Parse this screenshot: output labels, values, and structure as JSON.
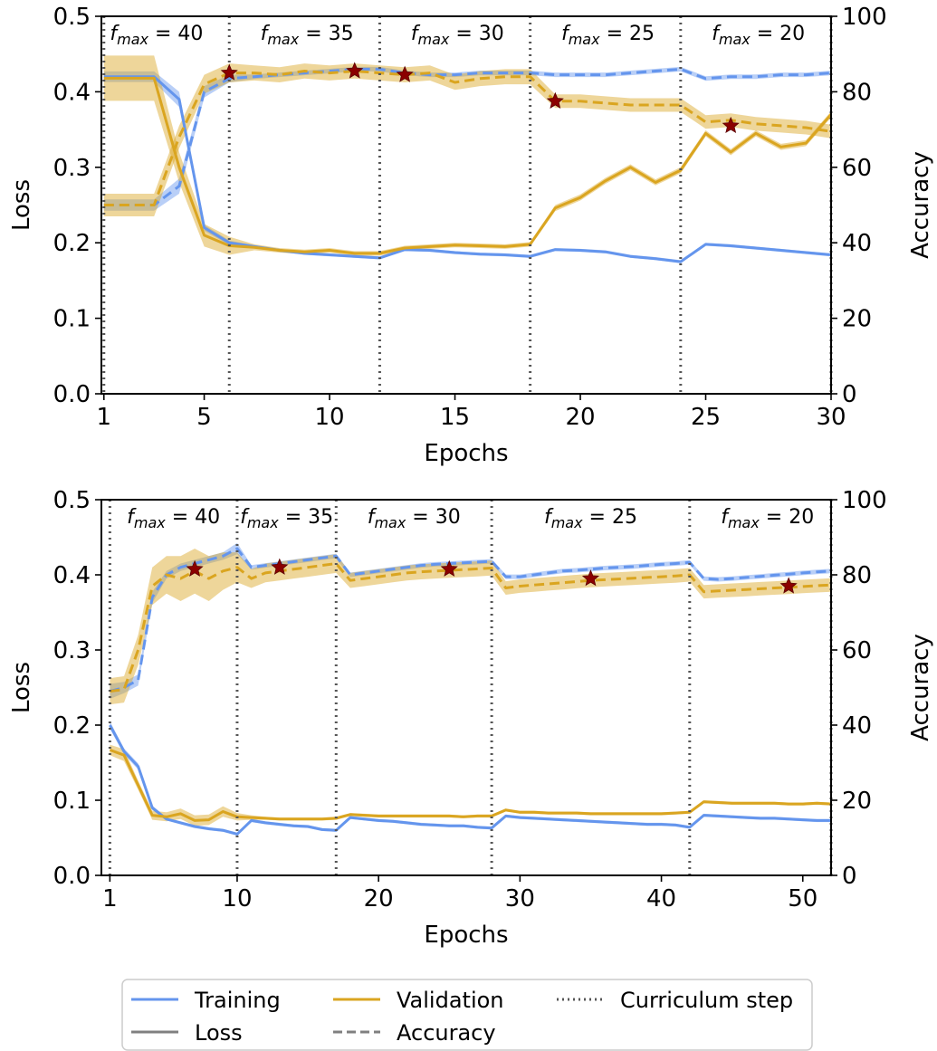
{
  "chart_data": [
    {
      "type": "line",
      "xlabel": "Epochs",
      "ylabel_left": "Loss",
      "ylabel_right": "Accuracy",
      "xlim": [
        0.9,
        30
      ],
      "ylim_left": [
        0,
        0.5
      ],
      "ylim_right": [
        0,
        100
      ],
      "xticks": [
        1,
        5,
        10,
        15,
        20,
        25,
        30
      ],
      "yticks_left": [
        "0.0",
        "0.1",
        "0.2",
        "0.3",
        "0.4",
        "0.5"
      ],
      "yticks_right": [
        "0",
        "20",
        "40",
        "60",
        "80",
        "100"
      ],
      "curriculum_steps": [
        1,
        6,
        12,
        18,
        24,
        30
      ],
      "regions": [
        {
          "x": 3.1,
          "text": "= 40"
        },
        {
          "x": 9.1,
          "text": "= 35"
        },
        {
          "x": 15.1,
          "text": "= 30"
        },
        {
          "x": 21.1,
          "text": "= 25"
        },
        {
          "x": 27.1,
          "text": "= 20"
        }
      ],
      "epochs": [
        1,
        2,
        3,
        4,
        5,
        6,
        7,
        8,
        9,
        10,
        11,
        12,
        13,
        14,
        15,
        16,
        17,
        18,
        19,
        20,
        21,
        22,
        23,
        24,
        25,
        26,
        27,
        28,
        29,
        30
      ],
      "series": [
        {
          "name": "Training",
          "metric": "Loss",
          "values": [
            0.42,
            0.42,
            0.42,
            0.39,
            0.22,
            0.2,
            0.195,
            0.19,
            0.186,
            0.184,
            0.182,
            0.18,
            0.191,
            0.19,
            0.187,
            0.185,
            0.184,
            0.182,
            0.191,
            0.19,
            0.188,
            0.182,
            0.179,
            0.175,
            0.198,
            0.196,
            0.193,
            0.19,
            0.187,
            0.184
          ],
          "band": [
            0.007,
            0.007,
            0.007,
            0.01,
            0.004,
            0.003,
            0.002,
            0.002,
            0.002,
            0.002,
            0.002,
            0.002,
            0.002,
            0.002,
            0.002,
            0.002,
            0.002,
            0.002,
            0.002,
            0.002,
            0.002,
            0.002,
            0.002,
            0.002,
            0.002,
            0.002,
            0.002,
            0.002,
            0.002,
            0.002
          ]
        },
        {
          "name": "Training",
          "metric": "Accuracy",
          "values": [
            50,
            50,
            50,
            55,
            80,
            83.5,
            84,
            84.5,
            85,
            85.5,
            86,
            86,
            85,
            84.5,
            84.5,
            85,
            85,
            85,
            84.5,
            84.5,
            84.5,
            85,
            85.5,
            86,
            83.5,
            84,
            84,
            84.5,
            84.5,
            85
          ],
          "band": [
            1.5,
            1.5,
            1.5,
            2,
            1.5,
            1,
            0.6,
            0.6,
            0.6,
            0.6,
            0.6,
            0.6,
            0.6,
            0.6,
            0.6,
            0.6,
            0.6,
            0.6,
            0.6,
            0.6,
            0.6,
            0.6,
            0.6,
            0.6,
            0.6,
            0.6,
            0.6,
            0.6,
            0.6,
            0.6
          ]
        },
        {
          "name": "Validation",
          "metric": "Loss",
          "values": [
            0.418,
            0.418,
            0.418,
            0.3,
            0.21,
            0.196,
            0.194,
            0.19,
            0.188,
            0.19,
            0.186,
            0.186,
            0.193,
            0.195,
            0.197,
            0.196,
            0.195,
            0.198,
            0.246,
            0.26,
            0.282,
            0.3,
            0.28,
            0.296,
            0.345,
            0.32,
            0.345,
            0.327,
            0.332,
            0.37
          ],
          "band": [
            0.03,
            0.03,
            0.03,
            0.02,
            0.015,
            0.012,
            0.004,
            0.003,
            0.003,
            0.003,
            0.003,
            0.003,
            0.003,
            0.003,
            0.003,
            0.003,
            0.003,
            0.003,
            0.004,
            0.004,
            0.004,
            0.004,
            0.004,
            0.004,
            0.004,
            0.004,
            0.004,
            0.004,
            0.004,
            0.004
          ]
        },
        {
          "name": "Validation",
          "metric": "Accuracy",
          "values": [
            50,
            50,
            50,
            68,
            82,
            85,
            85,
            84.5,
            85.5,
            85,
            85.5,
            85,
            84.5,
            85,
            82.5,
            83.5,
            84,
            84,
            77.5,
            77.5,
            77,
            76.5,
            76.5,
            76.5,
            72,
            72.5,
            71.5,
            71,
            70.5,
            69.5
          ],
          "band": [
            3,
            3,
            3,
            3,
            2.5,
            2.5,
            2,
            2,
            2,
            2,
            2,
            2,
            2,
            2,
            2,
            2,
            2,
            2,
            1.8,
            1.8,
            1.8,
            1.8,
            1.8,
            1.8,
            1.8,
            1.8,
            1.8,
            1.8,
            1.8,
            1.8
          ]
        }
      ],
      "best_markers": [
        {
          "x": 6,
          "y": 85
        },
        {
          "x": 11,
          "y": 85.5
        },
        {
          "x": 13,
          "y": 84.5
        },
        {
          "x": 19,
          "y": 77.5
        },
        {
          "x": 26,
          "y": 71
        }
      ]
    },
    {
      "type": "line",
      "xlabel": "Epochs",
      "ylabel_left": "Loss",
      "ylabel_right": "Accuracy",
      "xlim": [
        0.4,
        52
      ],
      "ylim_left": [
        0,
        0.5
      ],
      "ylim_right": [
        0,
        100
      ],
      "xticks": [
        1,
        10,
        20,
        30,
        40,
        50
      ],
      "yticks_left": [
        "0.0",
        "0.1",
        "0.2",
        "0.3",
        "0.4",
        "0.5"
      ],
      "yticks_right": [
        "0",
        "20",
        "40",
        "60",
        "80",
        "100"
      ],
      "curriculum_steps": [
        1,
        10,
        17,
        28,
        42,
        52
      ],
      "regions": [
        {
          "x": 5.5,
          "text": "= 40"
        },
        {
          "x": 13.5,
          "text": "= 35"
        },
        {
          "x": 22.5,
          "text": "= 30"
        },
        {
          "x": 35,
          "text": "= 25"
        },
        {
          "x": 47.5,
          "text": "= 20"
        }
      ],
      "epochs": [
        1,
        2,
        3,
        4,
        5,
        6,
        7,
        8,
        9,
        10,
        11,
        12,
        13,
        14,
        15,
        16,
        17,
        18,
        19,
        20,
        21,
        22,
        23,
        24,
        25,
        26,
        27,
        28,
        29,
        30,
        31,
        32,
        33,
        34,
        35,
        36,
        37,
        38,
        39,
        40,
        41,
        42,
        43,
        44,
        45,
        46,
        47,
        48,
        49,
        50,
        51,
        52
      ],
      "series": [
        {
          "name": "Training",
          "metric": "Loss",
          "values": [
            0.2,
            0.165,
            0.145,
            0.09,
            0.075,
            0.07,
            0.065,
            0.062,
            0.06,
            0.055,
            0.073,
            0.07,
            0.068,
            0.066,
            0.065,
            0.061,
            0.06,
            0.077,
            0.075,
            0.073,
            0.072,
            0.07,
            0.068,
            0.067,
            0.066,
            0.066,
            0.064,
            0.063,
            0.079,
            0.077,
            0.076,
            0.075,
            0.074,
            0.073,
            0.072,
            0.071,
            0.07,
            0.069,
            0.068,
            0.068,
            0.067,
            0.064,
            0.08,
            0.079,
            0.078,
            0.077,
            0.076,
            0.076,
            0.075,
            0.074,
            0.073,
            0.073
          ],
          "band": [
            0.005,
            0.004,
            0.004,
            0.003,
            0.002,
            0.002,
            0.002,
            0.002,
            0.002,
            0.002,
            0.002,
            0.002,
            0.002,
            0.002,
            0.002,
            0.002,
            0.002,
            0.002,
            0.002,
            0.002,
            0.002,
            0.002,
            0.002,
            0.002,
            0.002,
            0.002,
            0.002,
            0.002,
            0.002,
            0.002,
            0.002,
            0.002,
            0.002,
            0.002,
            0.002,
            0.002,
            0.002,
            0.002,
            0.002,
            0.002,
            0.002,
            0.002,
            0.002,
            0.002,
            0.002,
            0.002,
            0.002,
            0.002,
            0.002,
            0.002,
            0.002,
            0.002
          ]
        },
        {
          "name": "Training",
          "metric": "Accuracy",
          "values": [
            49,
            50,
            52,
            74,
            80,
            82,
            83,
            84,
            85,
            87,
            82,
            82.5,
            83,
            83.5,
            84,
            84.5,
            85,
            80,
            80.5,
            81,
            81.5,
            82,
            82.5,
            82.8,
            83,
            83.2,
            83.4,
            83.6,
            79.5,
            79.5,
            80,
            80.5,
            81,
            81.2,
            81.5,
            81.8,
            82,
            82.2,
            82.5,
            82.8,
            83,
            83.3,
            79,
            78.8,
            79,
            79.3,
            79.6,
            79.9,
            80.2,
            80.5,
            80.8,
            81
          ],
          "band": [
            2,
            1.5,
            1.5,
            1.5,
            1,
            1,
            1,
            1,
            1,
            1.5,
            0.6,
            0.6,
            0.6,
            0.6,
            0.6,
            0.6,
            0.6,
            0.6,
            0.6,
            0.6,
            0.6,
            0.6,
            0.6,
            0.6,
            0.6,
            0.6,
            0.6,
            0.6,
            0.6,
            0.6,
            0.6,
            0.6,
            0.6,
            0.6,
            0.6,
            0.6,
            0.6,
            0.6,
            0.6,
            0.6,
            0.6,
            0.6,
            0.6,
            0.6,
            0.6,
            0.6,
            0.6,
            0.6,
            0.6,
            0.6,
            0.6,
            0.6
          ]
        },
        {
          "name": "Validation",
          "metric": "Loss",
          "values": [
            0.167,
            0.16,
            0.12,
            0.08,
            0.078,
            0.082,
            0.073,
            0.074,
            0.085,
            0.078,
            0.077,
            0.076,
            0.075,
            0.075,
            0.075,
            0.075,
            0.076,
            0.081,
            0.08,
            0.079,
            0.079,
            0.079,
            0.079,
            0.079,
            0.079,
            0.078,
            0.079,
            0.079,
            0.087,
            0.084,
            0.084,
            0.083,
            0.083,
            0.083,
            0.082,
            0.082,
            0.082,
            0.082,
            0.082,
            0.082,
            0.083,
            0.084,
            0.098,
            0.097,
            0.096,
            0.096,
            0.096,
            0.096,
            0.095,
            0.095,
            0.096,
            0.095
          ],
          "band": [
            0.007,
            0.008,
            0.006,
            0.006,
            0.006,
            0.007,
            0.007,
            0.007,
            0.007,
            0.005,
            0.003,
            0.002,
            0.002,
            0.002,
            0.002,
            0.002,
            0.002,
            0.002,
            0.002,
            0.002,
            0.002,
            0.002,
            0.002,
            0.002,
            0.002,
            0.002,
            0.002,
            0.002,
            0.002,
            0.002,
            0.002,
            0.002,
            0.002,
            0.002,
            0.002,
            0.002,
            0.002,
            0.002,
            0.002,
            0.002,
            0.002,
            0.002,
            0.002,
            0.002,
            0.002,
            0.002,
            0.002,
            0.002,
            0.002,
            0.002,
            0.002,
            0.002
          ]
        },
        {
          "name": "Validation",
          "metric": "Accuracy",
          "values": [
            49,
            49.5,
            60,
            77,
            80,
            79,
            81,
            79,
            81,
            82,
            79,
            80.5,
            81,
            81.5,
            82,
            82.5,
            83,
            78.5,
            79,
            79.5,
            80,
            80.5,
            80.8,
            81,
            81.2,
            81.4,
            81.6,
            81.8,
            76.5,
            77,
            77.3,
            77.6,
            77.9,
            78.2,
            78.5,
            78.7,
            78.9,
            79.1,
            79.3,
            79.5,
            79.7,
            80,
            75.5,
            75.7,
            75.9,
            76.1,
            76.3,
            76.5,
            76.7,
            76.9,
            77.1,
            77.3
          ],
          "band": [
            3.5,
            3.5,
            4,
            5,
            5,
            6,
            6,
            6,
            5,
            4,
            2.5,
            2.5,
            2.5,
            2.5,
            2.5,
            2.5,
            2.5,
            2,
            2,
            2,
            2,
            2,
            2,
            2,
            2,
            2,
            2,
            2,
            1.8,
            1.8,
            1.8,
            1.8,
            1.8,
            1.8,
            1.8,
            1.8,
            1.8,
            1.8,
            1.8,
            1.8,
            1.8,
            1.8,
            1.8,
            1.8,
            1.8,
            1.8,
            1.8,
            1.8,
            1.8,
            1.8,
            1.8,
            1.8
          ]
        }
      ],
      "best_markers": [
        {
          "x": 7,
          "y": 81.5
        },
        {
          "x": 13,
          "y": 82
        },
        {
          "x": 25,
          "y": 81.5
        },
        {
          "x": 35,
          "y": 79
        },
        {
          "x": 49,
          "y": 77
        }
      ]
    }
  ],
  "legend": {
    "items": [
      {
        "label": "Training",
        "style": "solid",
        "color": "#6495ED"
      },
      {
        "label": "Validation",
        "style": "solid",
        "color": "#DAA520"
      },
      {
        "label": "Curriculum step",
        "style": "dotted",
        "color": "#555555"
      },
      {
        "label": "Loss",
        "style": "solid",
        "color": "#808080"
      },
      {
        "label": "Accuracy",
        "style": "dashed",
        "color": "#808080"
      }
    ]
  },
  "colors": {
    "training": "#6495ED",
    "validation": "#DAA520",
    "marker": "#8B0000",
    "curriculum": "#555555"
  }
}
